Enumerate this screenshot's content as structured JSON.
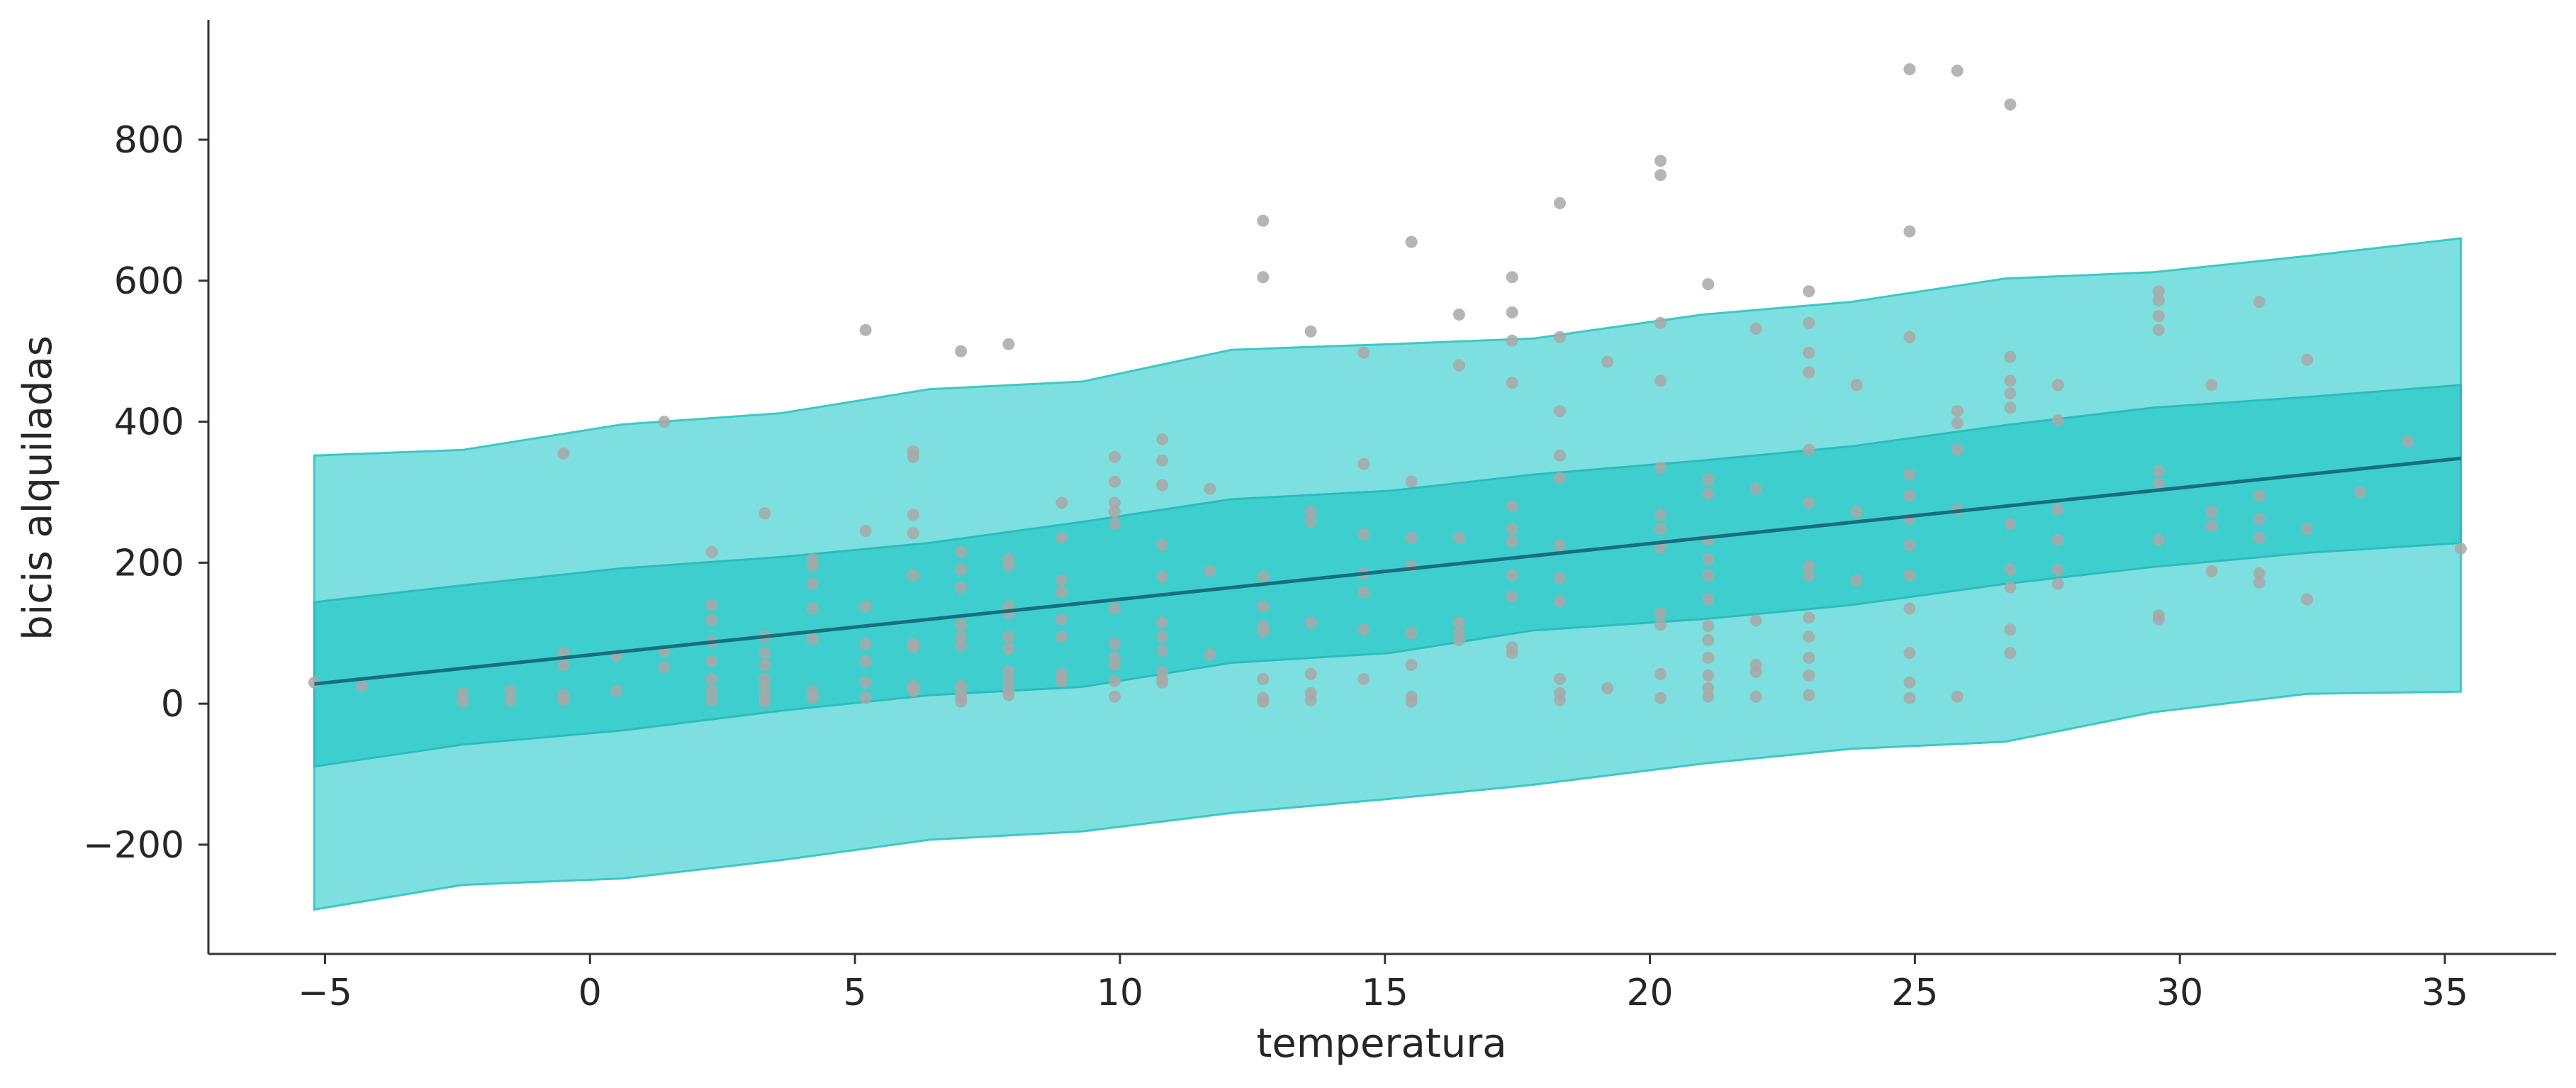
{
  "chart_data": {
    "type": "line",
    "title": "",
    "xlabel": "temperatura",
    "ylabel": "bicis alquiladas",
    "xlim": [
      -7.2,
      37.1
    ],
    "ylim": [
      -355,
      970
    ],
    "xticks": [
      -5,
      0,
      5,
      10,
      15,
      20,
      25,
      30,
      35
    ],
    "xtick_labels": [
      "−5",
      "0",
      "5",
      "10",
      "15",
      "20",
      "25",
      "30",
      "35"
    ],
    "yticks": [
      -200,
      0,
      200,
      400,
      600,
      800
    ],
    "ytick_labels": [
      "−200",
      "0",
      "200",
      "400",
      "600",
      "800"
    ],
    "grid": false,
    "colors": {
      "outer_band": "#7ddfdf",
      "outer_edge": "#3cc8c8",
      "inner_band": "#3ecece",
      "inner_edge": "#2bbcbc",
      "mean_line": "#176e7f",
      "points": "#a8a8a8"
    },
    "mean_line": {
      "x": [
        -5.2,
        35.3
      ],
      "y": [
        28,
        348
      ]
    },
    "band_94": {
      "x": [
        -5.2,
        -2.4,
        0.6,
        3.6,
        6.4,
        9.3,
        12.1,
        15.1,
        17.8,
        21.0,
        23.8,
        26.7,
        29.5,
        32.4,
        35.3
      ],
      "lower": [
        -292,
        -257,
        -248,
        -222,
        -193,
        -181,
        -155,
        -135,
        -115,
        -85,
        -64,
        -54,
        -12,
        14,
        17
      ],
      "upper": [
        352,
        360,
        396,
        412,
        446,
        457,
        502,
        510,
        518,
        552,
        570,
        603,
        612,
        635,
        660
      ]
    },
    "band_50": {
      "x": [
        -5.2,
        -2.4,
        0.6,
        3.6,
        6.4,
        9.3,
        12.1,
        15.1,
        17.8,
        21.0,
        23.8,
        26.7,
        29.5,
        32.4,
        35.3
      ],
      "lower": [
        -89,
        -58,
        -38,
        -10,
        12,
        24,
        58,
        72,
        104,
        120,
        140,
        170,
        194,
        214,
        228
      ],
      "upper": [
        144,
        168,
        192,
        208,
        228,
        258,
        290,
        302,
        325,
        345,
        365,
        395,
        420,
        435,
        452
      ]
    },
    "observations": {
      "x": [
        -5.2,
        -4.3,
        -2.4,
        -2.4,
        -1.5,
        -1.5,
        -0.5,
        -0.5,
        -0.5,
        -0.5,
        -0.5,
        0.5,
        0.5,
        1.4,
        1.4,
        1.4,
        2.3,
        2.3,
        2.3,
        2.3,
        2.3,
        2.3,
        2.3,
        2.3,
        3.3,
        3.3,
        3.3,
        3.3,
        3.3,
        3.3,
        3.3,
        3.3,
        4.2,
        4.2,
        4.2,
        4.2,
        4.2,
        4.2,
        4.2,
        5.2,
        5.2,
        5.2,
        5.2,
        5.2,
        5.2,
        5.2,
        6.1,
        6.1,
        6.1,
        6.1,
        6.1,
        6.1,
        6.1,
        6.1,
        6.1,
        6.1,
        7.0,
        7.0,
        7.0,
        7.0,
        7.0,
        7.0,
        7.0,
        7.0,
        7.0,
        7.0,
        7.0,
        7.9,
        7.9,
        7.9,
        7.9,
        7.9,
        7.9,
        7.9,
        7.9,
        7.9,
        7.9,
        7.9,
        8.9,
        8.9,
        8.9,
        8.9,
        8.9,
        8.9,
        8.9,
        8.9,
        9.9,
        9.9,
        9.9,
        9.9,
        9.9,
        9.9,
        9.9,
        9.9,
        9.9,
        9.9,
        9.9,
        10.8,
        10.8,
        10.8,
        10.8,
        10.8,
        10.8,
        10.8,
        10.8,
        10.8,
        10.8,
        10.8,
        11.7,
        11.7,
        11.7,
        12.7,
        12.7,
        12.7,
        12.7,
        12.7,
        12.7,
        12.7,
        12.7,
        12.7,
        13.6,
        13.6,
        13.6,
        13.6,
        13.6,
        13.6,
        13.6,
        14.6,
        14.6,
        14.6,
        14.6,
        14.6,
        14.6,
        14.6,
        15.5,
        15.5,
        15.5,
        15.5,
        15.5,
        15.5,
        15.5,
        15.5,
        16.4,
        16.4,
        16.4,
        16.4,
        16.4,
        16.4,
        17.4,
        17.4,
        17.4,
        17.4,
        17.4,
        17.4,
        17.4,
        17.4,
        17.4,
        17.4,
        17.4,
        18.3,
        18.3,
        18.3,
        18.3,
        18.3,
        18.3,
        18.3,
        18.3,
        18.3,
        18.3,
        18.3,
        19.2,
        19.2,
        20.2,
        20.2,
        20.2,
        20.2,
        20.2,
        20.2,
        20.2,
        20.2,
        20.2,
        20.2,
        20.2,
        20.2,
        21.1,
        21.1,
        21.1,
        21.1,
        21.1,
        21.1,
        21.1,
        21.1,
        21.1,
        21.1,
        21.1,
        21.1,
        21.1,
        22.0,
        22.0,
        22.0,
        22.0,
        22.0,
        22.0,
        23.0,
        23.0,
        23.0,
        23.0,
        23.0,
        23.0,
        23.0,
        23.0,
        23.0,
        23.0,
        23.0,
        23.0,
        23.0,
        23.9,
        23.9,
        23.9,
        24.9,
        24.9,
        24.9,
        24.9,
        24.9,
        24.9,
        24.9,
        24.9,
        24.9,
        24.9,
        24.9,
        24.9,
        25.8,
        25.8,
        25.8,
        25.8,
        25.8,
        25.8,
        26.8,
        26.8,
        26.8,
        26.8,
        26.8,
        26.8,
        26.8,
        26.8,
        26.8,
        26.8,
        27.7,
        27.7,
        27.7,
        27.7,
        27.7,
        27.7,
        29.6,
        29.6,
        29.6,
        29.6,
        29.6,
        29.6,
        29.6,
        29.6,
        29.6,
        30.6,
        30.6,
        30.6,
        30.6,
        31.5,
        31.5,
        31.5,
        31.5,
        31.5,
        31.5,
        32.4,
        32.4,
        32.4,
        33.4,
        34.3,
        35.3
      ],
      "y": [
        30,
        25,
        15,
        3,
        18,
        5,
        355,
        72,
        55,
        12,
        5,
        68,
        18,
        400,
        75,
        52,
        215,
        140,
        118,
        88,
        60,
        35,
        18,
        5,
        270,
        95,
        72,
        55,
        35,
        22,
        10,
        3,
        205,
        195,
        170,
        135,
        92,
        18,
        8,
        530,
        245,
        138,
        85,
        60,
        30,
        8,
        358,
        350,
        268,
        242,
        182,
        85,
        80,
        25,
        18,
        20,
        500,
        215,
        190,
        165,
        112,
        95,
        82,
        25,
        15,
        8,
        3,
        510,
        205,
        195,
        138,
        128,
        95,
        78,
        45,
        32,
        20,
        12,
        285,
        235,
        175,
        158,
        120,
        95,
        42,
        32,
        350,
        315,
        285,
        272,
        255,
        135,
        85,
        65,
        55,
        32,
        10,
        375,
        345,
        310,
        225,
        180,
        115,
        95,
        75,
        45,
        35,
        30,
        305,
        188,
        70,
        685,
        605,
        180,
        138,
        110,
        102,
        35,
        8,
        3,
        528,
        272,
        258,
        115,
        42,
        15,
        5,
        498,
        340,
        240,
        185,
        158,
        105,
        35,
        655,
        315,
        235,
        195,
        100,
        55,
        10,
        3,
        552,
        480,
        235,
        115,
        100,
        90,
        605,
        555,
        515,
        455,
        280,
        248,
        230,
        182,
        152,
        80,
        72,
        710,
        520,
        415,
        352,
        320,
        225,
        178,
        145,
        35,
        15,
        5,
        485,
        22,
        770,
        750,
        540,
        458,
        335,
        268,
        248,
        222,
        128,
        112,
        42,
        8,
        595,
        318,
        298,
        232,
        205,
        182,
        148,
        110,
        90,
        65,
        40,
        22,
        10,
        532,
        305,
        118,
        55,
        45,
        10,
        585,
        540,
        498,
        470,
        360,
        285,
        195,
        182,
        122,
        95,
        65,
        40,
        12,
        452,
        272,
        175,
        900,
        670,
        520,
        325,
        295,
        262,
        225,
        182,
        135,
        72,
        30,
        8,
        898,
        415,
        398,
        360,
        275,
        10,
        850,
        492,
        458,
        440,
        420,
        255,
        190,
        165,
        105,
        72,
        452,
        402,
        275,
        232,
        190,
        170,
        585,
        572,
        550,
        530,
        330,
        312,
        232,
        125,
        120,
        452,
        272,
        252,
        188,
        570,
        295,
        262,
        235,
        185,
        172,
        488,
        248,
        148,
        300,
        372,
        220
      ]
    }
  }
}
